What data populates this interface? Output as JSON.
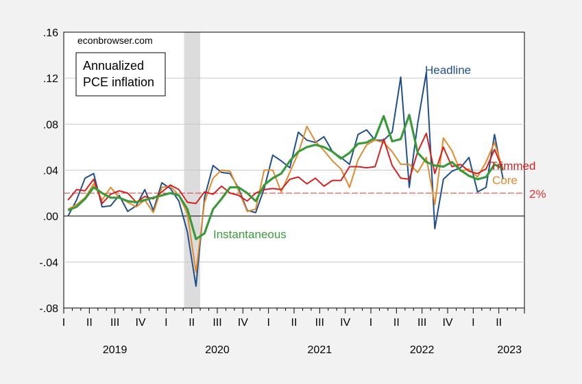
{
  "chart_data": {
    "type": "line",
    "watermark": "econbrowser.com",
    "legend_box": [
      "Annualized",
      "PCE inflation"
    ],
    "ylim": [
      -0.08,
      0.16
    ],
    "y_ticks": [
      {
        "value": 0.16,
        "label": ".16"
      },
      {
        "value": 0.12,
        "label": ".12"
      },
      {
        "value": 0.08,
        "label": ".08"
      },
      {
        "value": 0.04,
        "label": ".04"
      },
      {
        "value": 0.0,
        "label": ".00"
      },
      {
        "value": -0.04,
        "label": "-.04"
      },
      {
        "value": -0.08,
        "label": "-.08"
      }
    ],
    "x_months": [
      "2019-01",
      "2019-02",
      "2019-03",
      "2019-04",
      "2019-05",
      "2019-06",
      "2019-07",
      "2019-08",
      "2019-09",
      "2019-10",
      "2019-11",
      "2019-12",
      "2020-01",
      "2020-02",
      "2020-03",
      "2020-04",
      "2020-05",
      "2020-06",
      "2020-07",
      "2020-08",
      "2020-09",
      "2020-10",
      "2020-11",
      "2020-12",
      "2021-01",
      "2021-02",
      "2021-03",
      "2021-04",
      "2021-05",
      "2021-06",
      "2021-07",
      "2021-08",
      "2021-09",
      "2021-10",
      "2021-11",
      "2021-12",
      "2022-01",
      "2022-02",
      "2022-03",
      "2022-04",
      "2022-05",
      "2022-06",
      "2022-07",
      "2022-08",
      "2022-09",
      "2022-10",
      "2022-11",
      "2022-12",
      "2023-01",
      "2023-02",
      "2023-03",
      "2023-04"
    ],
    "quarter_labels": [
      "I",
      "II",
      "III",
      "IV",
      "I",
      "II",
      "III",
      "IV",
      "I",
      "II",
      "III",
      "IV",
      "I",
      "II",
      "III",
      "IV",
      "I",
      "II"
    ],
    "year_labels": [
      "2019",
      "2020",
      "2021",
      "2022",
      "2023"
    ],
    "recession_shade": {
      "start": "2020-03",
      "end": "2020-04"
    },
    "reference_line": {
      "value": 0.02,
      "label": "2%",
      "color": "#e03030"
    },
    "series": [
      {
        "name": "Headline",
        "color": "#1f4e8c",
        "width": 2,
        "values": [
          0.0,
          0.014,
          0.033,
          0.037,
          0.008,
          0.009,
          0.018,
          0.004,
          0.009,
          0.023,
          0.005,
          0.029,
          0.024,
          0.013,
          -0.014,
          -0.061,
          0.016,
          0.044,
          0.038,
          0.037,
          0.024,
          0.005,
          0.003,
          0.024,
          0.053,
          0.048,
          0.042,
          0.073,
          0.066,
          0.064,
          0.069,
          0.056,
          0.051,
          0.045,
          0.071,
          0.075,
          0.066,
          0.066,
          0.073,
          0.121,
          0.025,
          0.081,
          0.125,
          -0.011,
          0.032,
          0.039,
          0.042,
          0.051,
          0.021,
          0.025,
          0.071,
          0.032
        ]
      },
      {
        "name": "Core",
        "color": "#e08a2c",
        "width": 2,
        "values": [
          0.006,
          0.01,
          0.016,
          0.028,
          0.014,
          0.025,
          0.016,
          0.012,
          0.008,
          0.014,
          0.003,
          0.025,
          0.026,
          0.018,
          0.002,
          -0.049,
          0.012,
          0.033,
          0.04,
          0.039,
          0.022,
          0.004,
          0.006,
          0.04,
          0.04,
          0.021,
          0.038,
          0.055,
          0.078,
          0.065,
          0.057,
          0.048,
          0.041,
          0.025,
          0.049,
          0.062,
          0.066,
          0.064,
          0.056,
          0.045,
          0.045,
          0.038,
          0.051,
          0.01,
          0.068,
          0.057,
          0.039,
          0.041,
          0.034,
          0.047,
          0.064,
          0.04
        ]
      },
      {
        "name": "Trimmed",
        "color": "#d42020",
        "width": 2,
        "values": [
          0.014,
          0.023,
          0.022,
          0.032,
          0.011,
          0.019,
          0.022,
          0.02,
          0.012,
          0.017,
          0.015,
          0.021,
          0.027,
          0.023,
          0.012,
          0.011,
          0.021,
          0.019,
          0.026,
          0.02,
          0.018,
          0.013,
          0.02,
          0.023,
          0.024,
          0.023,
          0.032,
          0.034,
          0.028,
          0.033,
          0.026,
          0.031,
          0.031,
          0.043,
          0.043,
          0.042,
          0.043,
          0.067,
          0.044,
          0.033,
          0.032,
          0.056,
          0.072,
          0.037,
          0.06,
          0.043,
          0.045,
          0.039,
          0.037,
          0.041,
          0.058,
          0.04
        ]
      },
      {
        "name": "Instantaneous",
        "color": "#3a9a3a",
        "width": 3.2,
        "values": [
          0.005,
          0.008,
          0.015,
          0.025,
          0.02,
          0.016,
          0.016,
          0.013,
          0.012,
          0.014,
          0.016,
          0.018,
          0.02,
          0.018,
          0.006,
          -0.02,
          -0.015,
          0.006,
          0.015,
          0.025,
          0.025,
          0.02,
          0.013,
          0.027,
          0.033,
          0.037,
          0.048,
          0.056,
          0.06,
          0.062,
          0.06,
          0.056,
          0.05,
          0.055,
          0.063,
          0.064,
          0.068,
          0.087,
          0.065,
          0.067,
          0.088,
          0.055,
          0.047,
          0.044,
          0.043,
          0.047,
          0.04,
          0.035,
          0.032,
          0.034,
          0.045,
          0.041
        ]
      }
    ],
    "series_labels": [
      {
        "text": "Headline",
        "color": "#1f4e8c"
      },
      {
        "text": "Trimmed",
        "color": "#d42020"
      },
      {
        "text": "Core",
        "color": "#e08a2c"
      },
      {
        "text": "Instantaneous",
        "color": "#3a9a3a"
      }
    ],
    "grid": true
  }
}
